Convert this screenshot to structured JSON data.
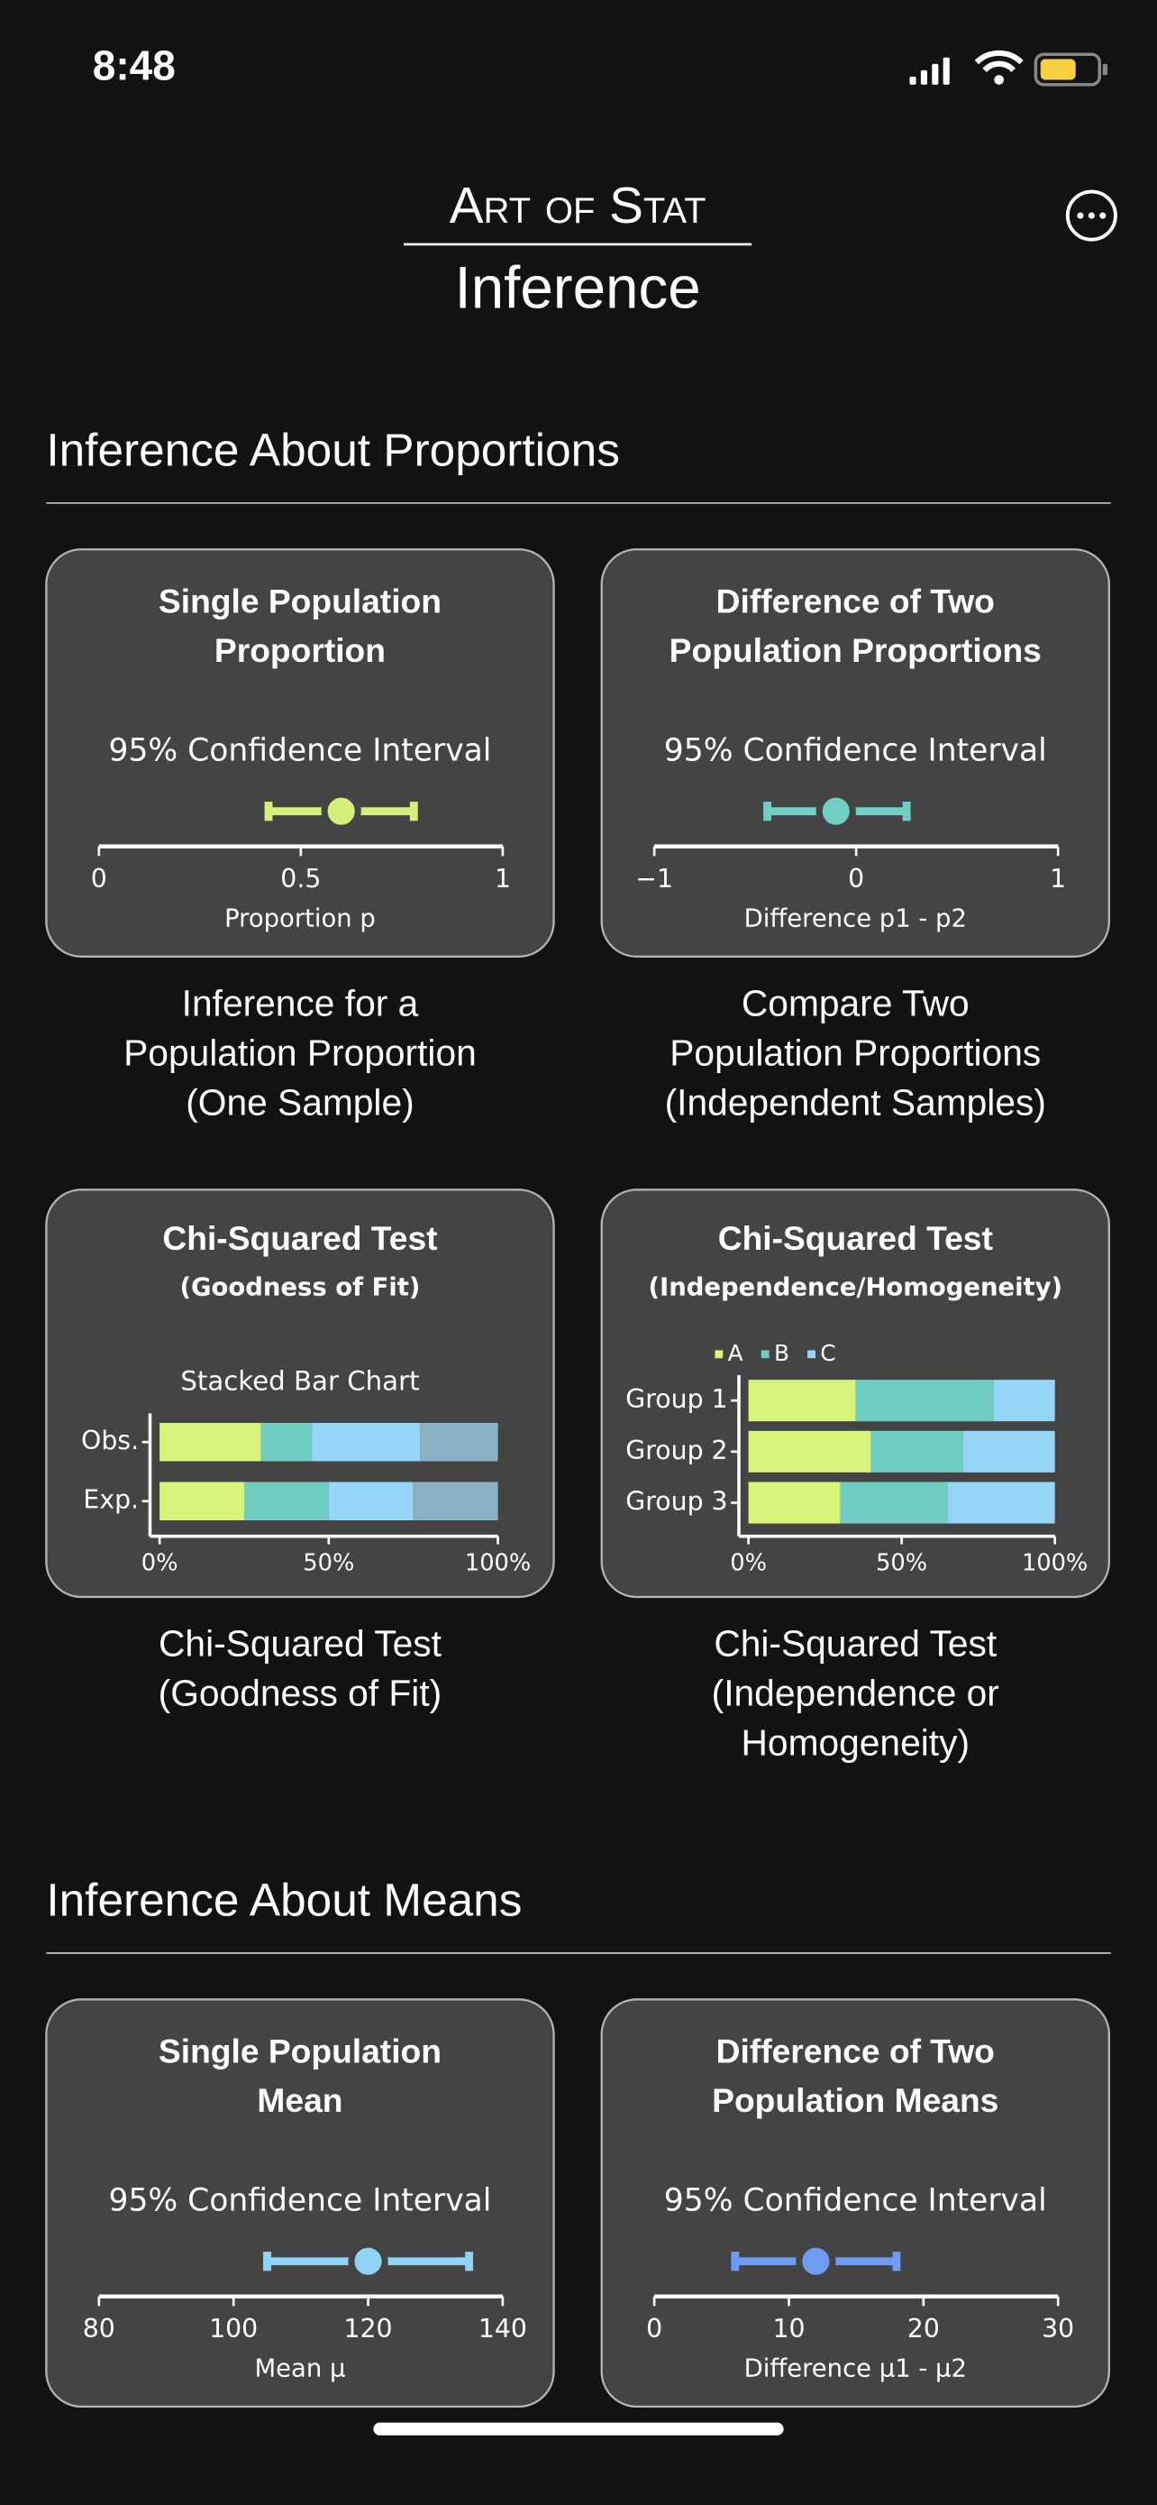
{
  "status_bar": {
    "time": "8:48"
  },
  "header": {
    "brand": "Art of Stat",
    "title": "Inference"
  },
  "sections": [
    {
      "heading": "Inference About Proportions",
      "cards": [
        {
          "title": [
            "Single Population",
            "Proportion"
          ],
          "chart": {
            "type": "interval",
            "title": "95% Confidence Interval",
            "estimate": 0.6,
            "lower": 0.42,
            "upper": 0.78,
            "color": "#d4f07a",
            "xlim": [
              0,
              1
            ],
            "xticks": [
              0,
              0.5,
              1
            ],
            "xlabel": "Proportion p"
          },
          "caption": [
            "Inference for a",
            "Population Proportion",
            "(One Sample)"
          ]
        },
        {
          "title": [
            "Difference of Two",
            "Population Proportions"
          ],
          "chart": {
            "type": "interval",
            "title": "95% Confidence Interval",
            "estimate": -0.1,
            "lower": -0.44,
            "upper": 0.25,
            "color": "#6fcfc2",
            "xlim": [
              -1,
              1
            ],
            "xticks": [
              {
                "value": -1,
                "label": "−1"
              },
              0,
              1
            ],
            "xlabel": "Difference p1 - p2"
          },
          "caption": [
            "Compare Two",
            "Population Proportions",
            "(Independent Samples)"
          ]
        },
        {
          "title": [
            "Chi-Squared Test"
          ],
          "subtitle": "(Goodness of Fit)",
          "chart": {
            "type": "stacked_bar",
            "title": "Stacked Bar Chart",
            "categories": [
              "Obs.",
              "Exp."
            ],
            "series": [
              {
                "color": "#d7f57a",
                "values": [
                  30,
                  25
                ]
              },
              {
                "color": "#6fcdc2",
                "values": [
                  15,
                  25
                ]
              },
              {
                "color": "#95d6f7",
                "values": [
                  32,
                  25
                ]
              },
              {
                "color": "#8ab0c3",
                "values": [
                  23,
                  25
                ]
              }
            ],
            "xlim": [
              0,
              100
            ],
            "xticks": [
              {
                "value": 0,
                "label": "0%"
              },
              {
                "value": 50,
                "label": "50%"
              },
              {
                "value": 100,
                "label": "100%"
              }
            ]
          },
          "caption": [
            "Chi-Squared Test",
            "(Goodness of Fit)"
          ]
        },
        {
          "title": [
            "Chi-Squared Test"
          ],
          "subtitle": "(Independence/Homogeneity)",
          "chart": {
            "type": "stacked_bar",
            "categories": [
              "Group 1",
              "Group 2",
              "Group 3"
            ],
            "series": [
              {
                "name": "A",
                "color": "#d7f57a",
                "values": [
                  35,
                  40,
                  30
                ]
              },
              {
                "name": "B",
                "color": "#6fcdc2",
                "values": [
                  45,
                  30,
                  35
                ]
              },
              {
                "name": "C",
                "color": "#95d6f7",
                "values": [
                  20,
                  30,
                  35
                ]
              }
            ],
            "xlim": [
              0,
              100
            ],
            "xticks": [
              {
                "value": 0,
                "label": "0%"
              },
              {
                "value": 50,
                "label": "50%"
              },
              {
                "value": 100,
                "label": "100%"
              }
            ]
          },
          "caption": [
            "Chi-Squared Test",
            "(Independence or",
            "Homogeneity)"
          ]
        }
      ]
    },
    {
      "heading": "Inference About Means",
      "cards": [
        {
          "title": [
            "Single Population",
            "Mean"
          ],
          "chart": {
            "type": "interval",
            "title": "95% Confidence Interval",
            "estimate": 120,
            "lower": 105,
            "upper": 135,
            "color": "#8fd3f5",
            "xlim": [
              80,
              140
            ],
            "xticks": [
              80,
              100,
              120,
              140
            ],
            "xlabel": "Mean μ"
          }
        },
        {
          "title": [
            "Difference of Two",
            "Population Means"
          ],
          "chart": {
            "type": "interval",
            "title": "95% Confidence Interval",
            "estimate": 12,
            "lower": 6,
            "upper": 18,
            "color": "#6f9cf0",
            "xlim": [
              0,
              30
            ],
            "xticks": [
              0,
              10,
              20,
              30
            ],
            "xlabel": "Difference μ1 - μ2"
          }
        }
      ]
    }
  ]
}
